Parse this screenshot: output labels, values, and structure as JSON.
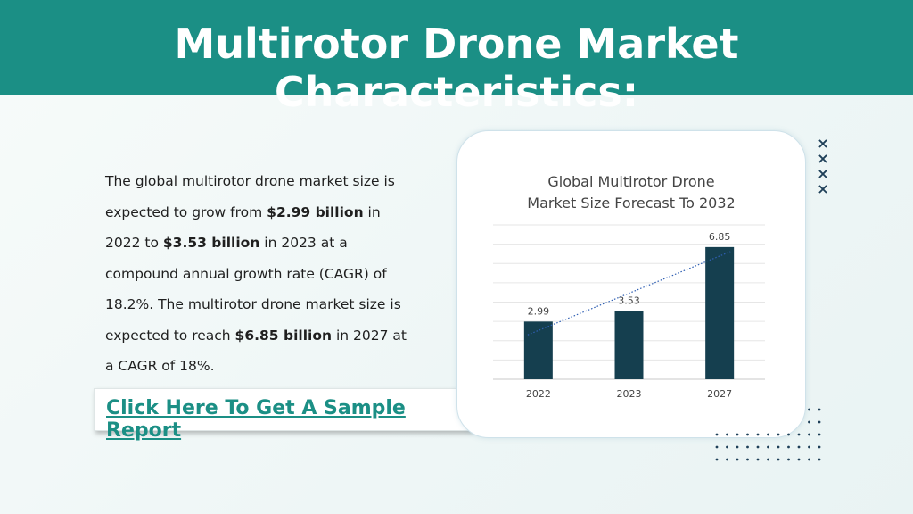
{
  "header": {
    "title": "Multirotor Drone Market Characteristics:"
  },
  "body": {
    "segments": [
      {
        "text": "The global multirotor drone market size is expected to grow from ",
        "bold": false
      },
      {
        "text": "$2.99 billion",
        "bold": true
      },
      {
        "text": " in 2022 to ",
        "bold": false
      },
      {
        "text": "$3.53 billion",
        "bold": true
      },
      {
        "text": " in 2023 at a compound annual growth rate (CAGR) of 18.2%. The multirotor drone market size is expected to reach ",
        "bold": false
      },
      {
        "text": "$6.85 billion",
        "bold": true
      },
      {
        "text": " in 2027 at a CAGR of 18%.",
        "bold": false
      }
    ]
  },
  "cta": {
    "label": "Click Here To Get A Sample Report"
  },
  "colors": {
    "header": "#1b8f85",
    "bar": "#153f4f",
    "link": "#1b8f85",
    "deco": "#1e3f58"
  },
  "decorations": {
    "cross_icon": "×"
  },
  "chart_data": {
    "type": "bar",
    "title_lines": [
      "Global Multirotor Drone",
      "Market Size Forecast To 2032"
    ],
    "categories": [
      "2022",
      "2023",
      "2027"
    ],
    "values": [
      2.99,
      3.53,
      6.85
    ],
    "data_labels": [
      "2.99",
      "3.53",
      "6.85"
    ],
    "trendline": true,
    "grid": true,
    "ylim": [
      0,
      8
    ],
    "xlabel": "",
    "ylabel": ""
  }
}
